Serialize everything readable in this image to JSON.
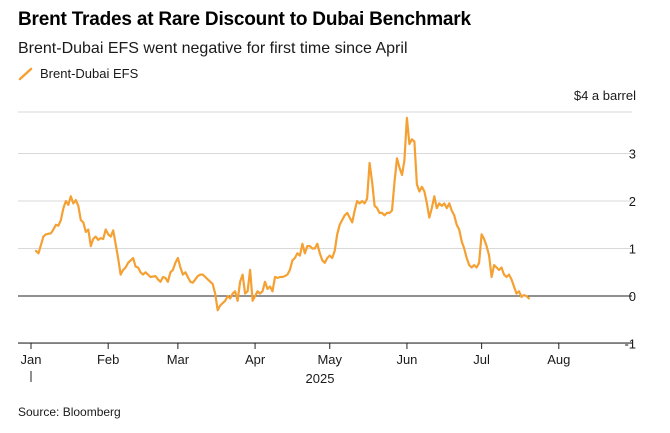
{
  "chart_data": {
    "type": "line",
    "title": "Brent Trades at Rare Discount to Dubai Benchmark",
    "subtitle": "Brent-Dubai EFS went negative for first time since April",
    "unit_label": "$4 a barrel",
    "source": "Source: Bloomberg",
    "year_label": "2025",
    "xlabel": "",
    "ylabel": "",
    "ylim": [
      -1,
      4
    ],
    "yticks": [
      -1,
      0,
      1,
      2,
      3
    ],
    "xlim": [
      0,
      241
    ],
    "xticks": [
      {
        "label": "Jan",
        "day": 0
      },
      {
        "label": "Feb",
        "day": 31
      },
      {
        "label": "Mar",
        "day": 59
      },
      {
        "label": "Apr",
        "day": 90
      },
      {
        "label": "May",
        "day": 120
      },
      {
        "label": "Jun",
        "day": 151
      },
      {
        "label": "Jul",
        "day": 181
      },
      {
        "label": "Aug",
        "day": 212
      }
    ],
    "series": [
      {
        "name": "Brent-Dubai EFS",
        "color": "#f5a033",
        "points": [
          [
            2,
            0.95
          ],
          [
            3,
            0.9
          ],
          [
            5,
            1.25
          ],
          [
            6,
            1.3
          ],
          [
            8,
            1.32
          ],
          [
            9,
            1.4
          ],
          [
            10,
            1.5
          ],
          [
            11,
            1.48
          ],
          [
            12,
            1.6
          ],
          [
            13,
            1.85
          ],
          [
            14,
            2.0
          ],
          [
            15,
            1.92
          ],
          [
            16,
            2.1
          ],
          [
            17,
            1.95
          ],
          [
            18,
            2.02
          ],
          [
            19,
            1.9
          ],
          [
            20,
            1.6
          ],
          [
            21,
            1.55
          ],
          [
            22,
            1.35
          ],
          [
            23,
            1.4
          ],
          [
            24,
            1.05
          ],
          [
            25,
            1.2
          ],
          [
            26,
            1.25
          ],
          [
            27,
            1.18
          ],
          [
            28,
            1.22
          ],
          [
            29,
            1.2
          ],
          [
            30,
            1.4
          ],
          [
            31,
            1.3
          ],
          [
            32,
            1.25
          ],
          [
            33,
            1.38
          ],
          [
            34,
            1.1
          ],
          [
            35,
            0.8
          ],
          [
            36,
            0.45
          ],
          [
            37,
            0.55
          ],
          [
            38,
            0.6
          ],
          [
            39,
            0.7
          ],
          [
            40,
            0.75
          ],
          [
            41,
            0.8
          ],
          [
            42,
            0.62
          ],
          [
            43,
            0.6
          ],
          [
            44,
            0.5
          ],
          [
            45,
            0.45
          ],
          [
            46,
            0.5
          ],
          [
            47,
            0.45
          ],
          [
            48,
            0.4
          ],
          [
            50,
            0.42
          ],
          [
            51,
            0.35
          ],
          [
            52,
            0.3
          ],
          [
            53,
            0.4
          ],
          [
            54,
            0.38
          ],
          [
            55,
            0.3
          ],
          [
            56,
            0.5
          ],
          [
            57,
            0.55
          ],
          [
            58,
            0.7
          ],
          [
            59,
            0.8
          ],
          [
            60,
            0.6
          ],
          [
            61,
            0.45
          ],
          [
            62,
            0.5
          ],
          [
            63,
            0.4
          ],
          [
            64,
            0.3
          ],
          [
            65,
            0.28
          ],
          [
            66,
            0.35
          ],
          [
            67,
            0.42
          ],
          [
            68,
            0.45
          ],
          [
            69,
            0.45
          ],
          [
            70,
            0.4
          ],
          [
            71,
            0.35
          ],
          [
            72,
            0.3
          ],
          [
            73,
            0.25
          ],
          [
            74,
            0.05
          ],
          [
            75,
            -0.3
          ],
          [
            76,
            -0.2
          ],
          [
            77,
            -0.15
          ],
          [
            78,
            -0.1
          ],
          [
            79,
            0.0
          ],
          [
            80,
            -0.05
          ],
          [
            81,
            0.05
          ],
          [
            82,
            0.1
          ],
          [
            83,
            -0.1
          ],
          [
            84,
            0.3
          ],
          [
            85,
            0.45
          ],
          [
            86,
            0.05
          ],
          [
            87,
            0.1
          ],
          [
            88,
            0.55
          ],
          [
            89,
            -0.1
          ],
          [
            90,
            0.0
          ],
          [
            91,
            0.1
          ],
          [
            92,
            0.05
          ],
          [
            93,
            0.1
          ],
          [
            94,
            0.3
          ],
          [
            95,
            0.15
          ],
          [
            96,
            0.2
          ],
          [
            97,
            0.1
          ],
          [
            98,
            0.4
          ],
          [
            99,
            0.38
          ],
          [
            100,
            0.4
          ],
          [
            101,
            0.4
          ],
          [
            102,
            0.42
          ],
          [
            103,
            0.45
          ],
          [
            104,
            0.55
          ],
          [
            105,
            0.75
          ],
          [
            106,
            0.8
          ],
          [
            107,
            0.9
          ],
          [
            108,
            0.85
          ],
          [
            109,
            1.1
          ],
          [
            110,
            0.9
          ],
          [
            111,
            1.05
          ],
          [
            112,
            1.05
          ],
          [
            113,
            1.0
          ],
          [
            114,
            1.0
          ],
          [
            115,
            1.1
          ],
          [
            116,
            0.9
          ],
          [
            117,
            0.75
          ],
          [
            118,
            0.7
          ],
          [
            119,
            0.8
          ],
          [
            120,
            0.85
          ],
          [
            121,
            0.8
          ],
          [
            122,
            0.95
          ],
          [
            123,
            1.3
          ],
          [
            124,
            1.5
          ],
          [
            125,
            1.6
          ],
          [
            126,
            1.7
          ],
          [
            127,
            1.75
          ],
          [
            128,
            1.65
          ],
          [
            129,
            1.55
          ],
          [
            130,
            1.8
          ],
          [
            131,
            2.0
          ],
          [
            132,
            1.95
          ],
          [
            133,
            2.0
          ],
          [
            134,
            1.95
          ],
          [
            135,
            2.05
          ],
          [
            136,
            2.8
          ],
          [
            137,
            2.4
          ],
          [
            138,
            1.9
          ],
          [
            139,
            1.85
          ],
          [
            140,
            1.75
          ],
          [
            141,
            1.75
          ],
          [
            142,
            1.7
          ],
          [
            143,
            1.75
          ],
          [
            144,
            1.75
          ],
          [
            145,
            1.8
          ],
          [
            146,
            2.4
          ],
          [
            147,
            2.9
          ],
          [
            148,
            2.7
          ],
          [
            149,
            2.55
          ],
          [
            150,
            2.85
          ],
          [
            151,
            3.75
          ],
          [
            152,
            3.2
          ],
          [
            153,
            3.3
          ],
          [
            154,
            3.25
          ],
          [
            155,
            2.35
          ],
          [
            156,
            2.2
          ],
          [
            157,
            2.3
          ],
          [
            158,
            2.2
          ],
          [
            159,
            1.95
          ],
          [
            160,
            1.65
          ],
          [
            161,
            1.85
          ],
          [
            162,
            2.1
          ],
          [
            163,
            1.85
          ],
          [
            164,
            1.95
          ],
          [
            165,
            1.9
          ],
          [
            166,
            1.95
          ],
          [
            167,
            1.85
          ],
          [
            168,
            1.95
          ],
          [
            169,
            1.8
          ],
          [
            170,
            1.7
          ],
          [
            171,
            1.5
          ],
          [
            172,
            1.4
          ],
          [
            173,
            1.15
          ],
          [
            174,
            1.0
          ],
          [
            175,
            0.8
          ],
          [
            176,
            0.65
          ],
          [
            177,
            0.6
          ],
          [
            178,
            0.65
          ],
          [
            179,
            0.6
          ],
          [
            180,
            0.7
          ],
          [
            181,
            1.3
          ],
          [
            182,
            1.2
          ],
          [
            183,
            1.05
          ],
          [
            184,
            0.85
          ],
          [
            185,
            0.4
          ],
          [
            186,
            0.65
          ],
          [
            187,
            0.6
          ],
          [
            188,
            0.55
          ],
          [
            189,
            0.6
          ],
          [
            190,
            0.45
          ],
          [
            191,
            0.4
          ],
          [
            192,
            0.45
          ],
          [
            193,
            0.35
          ],
          [
            194,
            0.2
          ],
          [
            195,
            0.05
          ],
          [
            196,
            0.1
          ],
          [
            197,
            -0.02
          ],
          [
            198,
            0.02
          ],
          [
            199,
            0.0
          ],
          [
            200,
            -0.05
          ]
        ]
      }
    ]
  }
}
